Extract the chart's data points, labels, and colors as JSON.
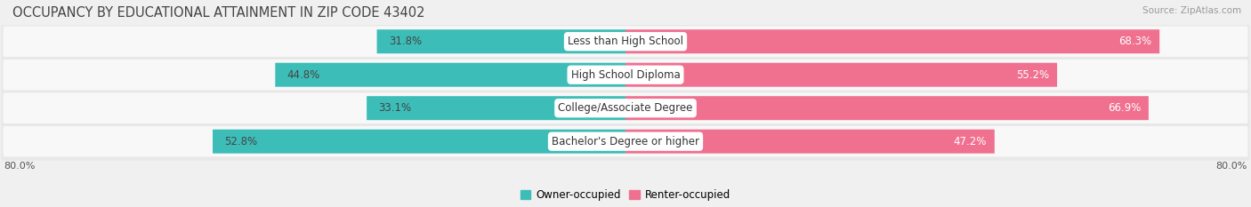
{
  "title": "OCCUPANCY BY EDUCATIONAL ATTAINMENT IN ZIP CODE 43402",
  "source": "Source: ZipAtlas.com",
  "categories": [
    "Less than High School",
    "High School Diploma",
    "College/Associate Degree",
    "Bachelor's Degree or higher"
  ],
  "owner_values": [
    31.8,
    44.8,
    33.1,
    52.8
  ],
  "renter_values": [
    68.3,
    55.2,
    66.9,
    47.2
  ],
  "owner_color": "#3dbdb8",
  "renter_color": "#f07090",
  "owner_label": "Owner-occupied",
  "renter_label": "Renter-occupied",
  "xlim_left": -80.0,
  "xlim_right": 80.0,
  "axis_label_left": "80.0%",
  "axis_label_right": "80.0%",
  "background_color": "#f0f0f0",
  "row_bg_color": "#ffffff",
  "title_fontsize": 10.5,
  "source_fontsize": 7.5,
  "value_fontsize": 8.5,
  "cat_fontsize": 8.5
}
